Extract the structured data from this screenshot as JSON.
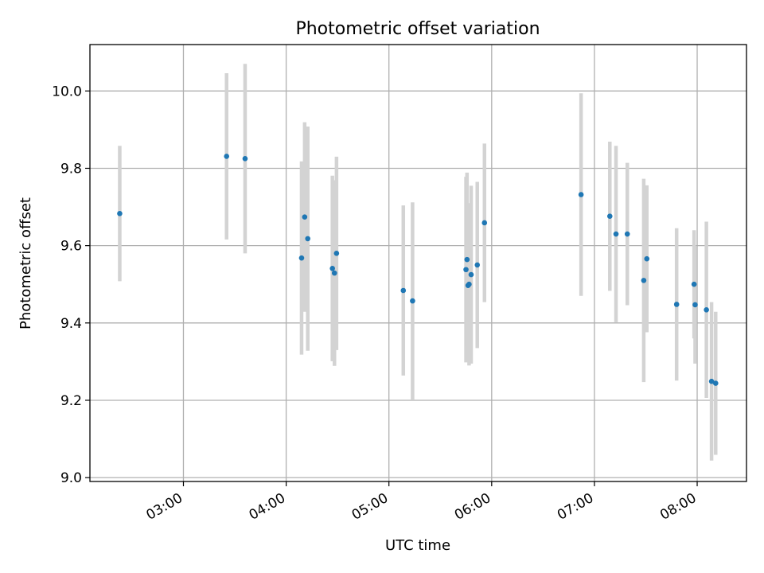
{
  "chart_data": {
    "type": "scatter",
    "title": "Photometric offset variation",
    "xlabel": "UTC time",
    "ylabel": "Photometric offset",
    "grid": true,
    "x_unit": "time of day (hours)",
    "xlim": [
      2.09,
      8.48
    ],
    "ylim": [
      8.99,
      10.12
    ],
    "x_ticks": [
      {
        "value": 3,
        "label": "03:00"
      },
      {
        "value": 4,
        "label": "04:00"
      },
      {
        "value": 5,
        "label": "05:00"
      },
      {
        "value": 6,
        "label": "06:00"
      },
      {
        "value": 7,
        "label": "07:00"
      },
      {
        "value": 8,
        "label": "08:00"
      }
    ],
    "y_ticks": [
      {
        "value": 9.0,
        "label": "9.0"
      },
      {
        "value": 9.2,
        "label": "9.2"
      },
      {
        "value": 9.4,
        "label": "9.4"
      },
      {
        "value": 9.6,
        "label": "9.6"
      },
      {
        "value": 9.8,
        "label": "9.8"
      },
      {
        "value": 10.0,
        "label": "10.0"
      }
    ],
    "colors": {
      "points": "#1f77b4",
      "errorbars": "#d3d3d3",
      "grid": "#b0b0b0"
    },
    "points": [
      {
        "x": 2.38,
        "y": 9.683,
        "err": 0.175
      },
      {
        "x": 3.42,
        "y": 9.831,
        "err": 0.215
      },
      {
        "x": 3.6,
        "y": 9.825,
        "err": 0.245
      },
      {
        "x": 4.15,
        "y": 9.568,
        "err": 0.25
      },
      {
        "x": 4.18,
        "y": 9.674,
        "err": 0.245
      },
      {
        "x": 4.21,
        "y": 9.618,
        "err": 0.29
      },
      {
        "x": 4.45,
        "y": 9.541,
        "err": 0.24
      },
      {
        "x": 4.47,
        "y": 9.529,
        "err": 0.24
      },
      {
        "x": 4.49,
        "y": 9.58,
        "err": 0.25
      },
      {
        "x": 5.14,
        "y": 9.484,
        "err": 0.22
      },
      {
        "x": 5.23,
        "y": 9.457,
        "err": 0.255
      },
      {
        "x": 5.75,
        "y": 9.538,
        "err": 0.24
      },
      {
        "x": 5.76,
        "y": 9.564,
        "err": 0.225
      },
      {
        "x": 5.77,
        "y": 9.497,
        "err": 0.195
      },
      {
        "x": 5.78,
        "y": 9.5,
        "err": 0.21
      },
      {
        "x": 5.8,
        "y": 9.525,
        "err": 0.23
      },
      {
        "x": 5.86,
        "y": 9.55,
        "err": 0.215
      },
      {
        "x": 5.93,
        "y": 9.659,
        "err": 0.205
      },
      {
        "x": 6.87,
        "y": 9.732,
        "err": 0.262
      },
      {
        "x": 7.15,
        "y": 9.676,
        "err": 0.193
      },
      {
        "x": 7.21,
        "y": 9.63,
        "err": 0.228
      },
      {
        "x": 7.32,
        "y": 9.63,
        "err": 0.184
      },
      {
        "x": 7.48,
        "y": 9.51,
        "err": 0.263
      },
      {
        "x": 7.51,
        "y": 9.566,
        "err": 0.19
      },
      {
        "x": 7.8,
        "y": 9.448,
        "err": 0.197
      },
      {
        "x": 7.97,
        "y": 9.5,
        "err": 0.14
      },
      {
        "x": 7.98,
        "y": 9.447,
        "err": 0.152
      },
      {
        "x": 8.09,
        "y": 9.434,
        "err": 0.228
      },
      {
        "x": 8.14,
        "y": 9.249,
        "err": 0.205
      },
      {
        "x": 8.18,
        "y": 9.244,
        "err": 0.185
      }
    ]
  }
}
